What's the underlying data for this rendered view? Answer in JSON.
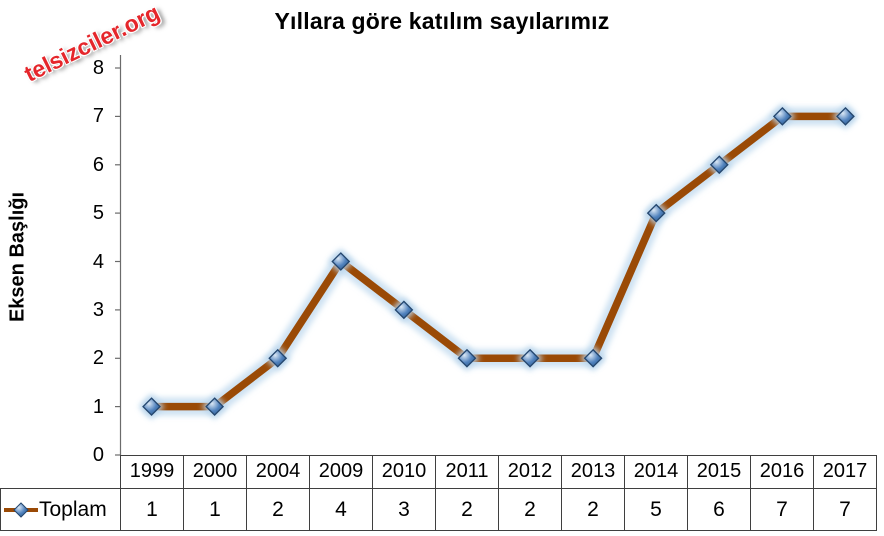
{
  "watermark": {
    "text": "telsizciler.org",
    "color": "#e5262b"
  },
  "chart_data": {
    "type": "line",
    "title": "Yıllara göre katılım sayılarımız",
    "xlabel": "",
    "ylabel": "Eksen Başlığı",
    "categories": [
      "1999",
      "2000",
      "2004",
      "2009",
      "2010",
      "2011",
      "2012",
      "2013",
      "2014",
      "2015",
      "2016",
      "2017"
    ],
    "series": [
      {
        "name": "Toplam",
        "values": [
          1,
          1,
          2,
          4,
          3,
          2,
          2,
          2,
          5,
          6,
          7,
          7
        ]
      }
    ],
    "ylim": [
      0,
      8
    ],
    "ytick_step": 1,
    "grid": false,
    "legend_position": "data-table-left",
    "line_color": "#9a4a06",
    "glow_color": "#b9d5ec",
    "marker_color": "#4f81bd",
    "marker_edge_color": "#24466e",
    "axis_color": "#6b6b6b",
    "table_border_color": "#3f3f3f"
  }
}
